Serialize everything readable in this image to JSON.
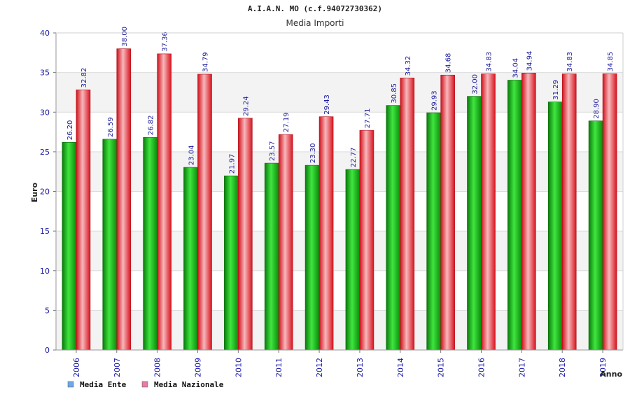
{
  "chart_data": {
    "type": "bar",
    "title": "A.I.A.N. MO (c.f.94072730362)",
    "subtitle": "Media Importi",
    "ylabel": "Euro",
    "xlabel": "Anno",
    "ylim": [
      0,
      40
    ],
    "yticks": [
      "0",
      "5",
      "10",
      "15",
      "20",
      "25",
      "30",
      "35",
      "40"
    ],
    "categories": [
      "2006",
      "2007",
      "2008",
      "2009",
      "2010",
      "2011",
      "2012",
      "2013",
      "2014",
      "2015",
      "2016",
      "2017",
      "2018",
      "2019"
    ],
    "series": [
      {
        "name": "Media Ente",
        "color": "#22aa22",
        "legend_color": "#6fa8e8",
        "values": [
          26.2,
          26.59,
          26.82,
          23.04,
          21.97,
          23.57,
          23.3,
          22.77,
          30.85,
          29.93,
          32.0,
          34.04,
          31.29,
          28.9
        ],
        "labels": [
          "26.20",
          "26.59",
          "26.82",
          "23.04",
          "21.97",
          "23.57",
          "23.30",
          "22.77",
          "30.85",
          "29.93",
          "32.00",
          "34.04",
          "31.29",
          "28.90"
        ]
      },
      {
        "name": "Media Nazionale",
        "color": "#e8202a",
        "legend_color": "#e87aa8",
        "values": [
          32.82,
          38.0,
          37.36,
          34.79,
          29.24,
          27.19,
          29.43,
          27.71,
          34.32,
          34.68,
          34.83,
          34.94,
          34.83,
          34.85
        ],
        "labels": [
          "32.82",
          "38.00",
          "37.36",
          "34.79",
          "29.24",
          "27.19",
          "29.43",
          "27.71",
          "34.32",
          "34.68",
          "34.83",
          "34.94",
          "34.83",
          "34.85"
        ]
      }
    ],
    "grid": true,
    "legend_position": "bottom-left"
  }
}
